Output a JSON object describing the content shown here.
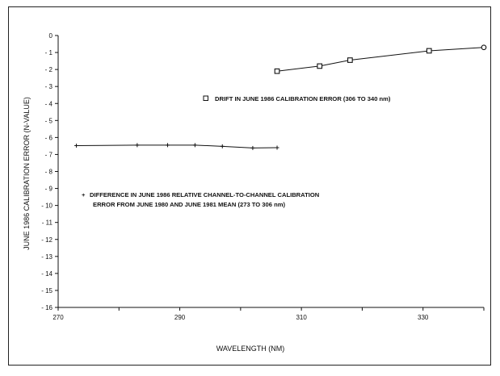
{
  "chart_data": {
    "type": "line",
    "title": "",
    "xlabel": "WAVELENGTH (NM)",
    "ylabel": "JUNE 1986 CALIBRATION ERROR (N-VALUE)",
    "xlim": [
      270,
      340
    ],
    "ylim": [
      -16,
      0
    ],
    "x_ticks": [
      270,
      290,
      310,
      330
    ],
    "y_ticks": [
      0,
      -1,
      -2,
      -3,
      -4,
      -5,
      -6,
      -7,
      -8,
      -9,
      -10,
      -11,
      -12,
      -13,
      -14,
      -15,
      -16
    ],
    "grid": false,
    "series": [
      {
        "name": "",
        "marker": "cross",
        "x": [
          273,
          283,
          288,
          292.5,
          297,
          302,
          306
        ],
        "y": [
          -6.48,
          -6.45,
          -6.45,
          -6.45,
          -6.52,
          -6.62,
          -6.6
        ]
      },
      {
        "name": "",
        "marker": "square",
        "x": [
          306,
          313,
          318,
          331,
          340
        ],
        "y": [
          -2.1,
          -1.8,
          -1.45,
          -0.9,
          -0.7
        ]
      }
    ],
    "annotations": [
      {
        "id": "drift",
        "symbol": "□",
        "lines": [
          "DRIFT IN JUNE 1986 CALIBRATION ERROR (306 TO 340 nm)"
        ]
      },
      {
        "id": "difference",
        "symbol": "+",
        "lines": [
          "DIFFERENCE IN JUNE 1986 RELATIVE CHANNEL-TO-CHANNEL CALIBRATION",
          "ERROR FROM JUNE 1980 AND JUNE 1981 MEAN (273 TO 306 nm)"
        ]
      }
    ]
  }
}
